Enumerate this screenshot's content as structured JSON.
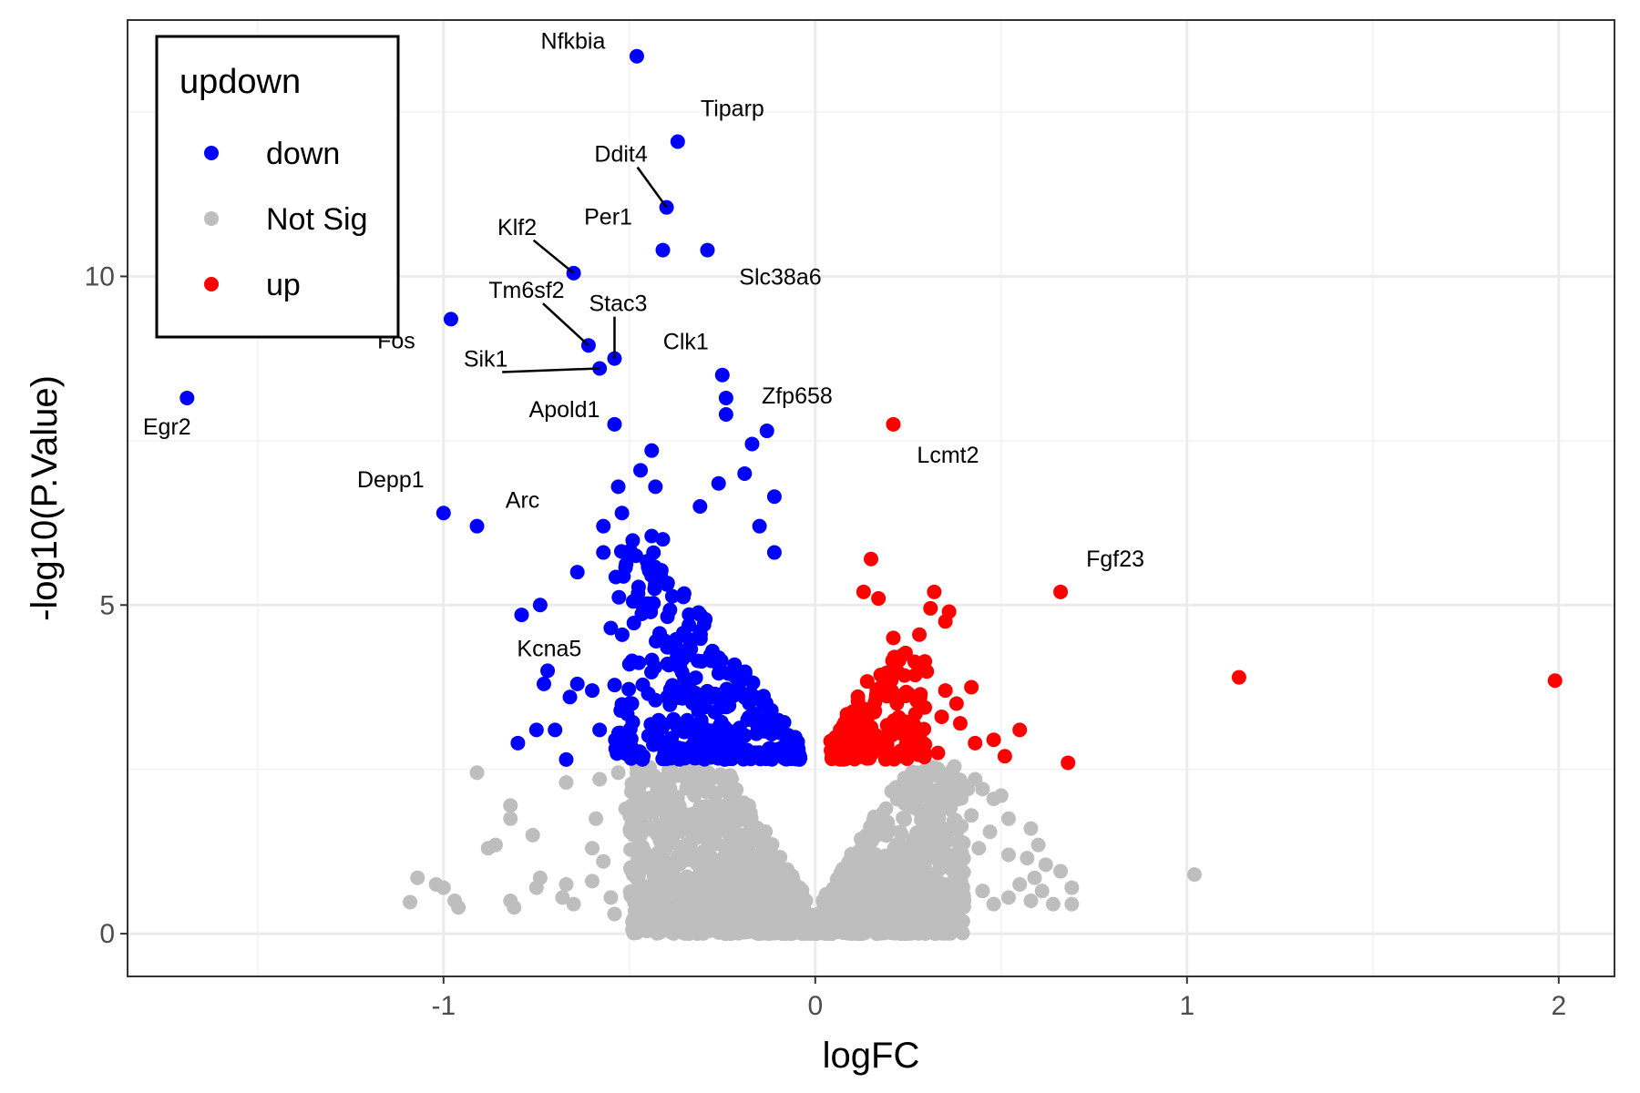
{
  "chart_data": {
    "type": "scatter",
    "xlabel": "logFC",
    "ylabel": "-log10(P.Value)",
    "xlim": [
      -1.85,
      2.15
    ],
    "ylim": [
      -0.65,
      13.9
    ],
    "x_ticks": [
      -1,
      0,
      1,
      2
    ],
    "x_tick_labels": [
      "-1",
      "0",
      "1",
      "2"
    ],
    "y_ticks": [
      0,
      5,
      10
    ],
    "y_tick_labels": [
      "0",
      "5",
      "10"
    ],
    "grid": true,
    "legend": {
      "title": "updown",
      "placement": "top-left",
      "entries": [
        {
          "label": "down",
          "color": "#0000ff"
        },
        {
          "label": "Not Sig",
          "color": "#bebebe"
        },
        {
          "label": "up",
          "color": "#ff0000"
        }
      ]
    },
    "colors": {
      "down": "#0000ff",
      "Not Sig": "#bebebe",
      "up": "#ff0000"
    },
    "labeled_points": [
      {
        "name": "Nfkbia",
        "x": -0.48,
        "y": 13.35,
        "group": "down"
      },
      {
        "name": "Tiparp",
        "x": -0.37,
        "y": 12.05,
        "group": "down"
      },
      {
        "name": "Ddit4",
        "x": -0.4,
        "y": 11.05,
        "group": "down"
      },
      {
        "name": "Per1",
        "x": -0.41,
        "y": 10.4,
        "group": "down"
      },
      {
        "name": "Slc38a6",
        "x": -0.29,
        "y": 10.4,
        "group": "down"
      },
      {
        "name": "Klf2",
        "x": -0.65,
        "y": 10.05,
        "group": "down"
      },
      {
        "name": "Fos",
        "x": -0.98,
        "y": 9.35,
        "group": "down"
      },
      {
        "name": "Tm6sf2",
        "x": -0.61,
        "y": 8.95,
        "group": "down"
      },
      {
        "name": "Stac3",
        "x": -0.54,
        "y": 8.75,
        "group": "down"
      },
      {
        "name": "Sik1",
        "x": -0.58,
        "y": 8.6,
        "group": "down"
      },
      {
        "name": "Clk1",
        "x": -0.25,
        "y": 8.5,
        "group": "down"
      },
      {
        "name": "Egr2",
        "x": -1.69,
        "y": 8.15,
        "group": "down"
      },
      {
        "name": "Zfp658",
        "x": -0.24,
        "y": 8.15,
        "group": "down"
      },
      {
        "name": "Apold1",
        "x": -0.54,
        "y": 7.75,
        "group": "down"
      },
      {
        "name": "Lcmt2",
        "x": 0.21,
        "y": 7.75,
        "group": "up"
      },
      {
        "name": "Depp1",
        "x": -1.0,
        "y": 6.4,
        "group": "down"
      },
      {
        "name": "Arc",
        "x": -0.91,
        "y": 6.2,
        "group": "down"
      },
      {
        "name": "Fgf23",
        "x": 0.66,
        "y": 5.2,
        "group": "up"
      },
      {
        "name": "Kcna5",
        "x": -0.74,
        "y": 5.0,
        "group": "down"
      }
    ],
    "other_points": [
      {
        "x": -0.24,
        "y": 7.9,
        "group": "down"
      },
      {
        "x": -0.13,
        "y": 7.65,
        "group": "down"
      },
      {
        "x": -0.17,
        "y": 7.45,
        "group": "down"
      },
      {
        "x": -0.44,
        "y": 7.35,
        "group": "down"
      },
      {
        "x": -0.47,
        "y": 7.05,
        "group": "down"
      },
      {
        "x": -0.19,
        "y": 7.0,
        "group": "down"
      },
      {
        "x": -0.53,
        "y": 6.8,
        "group": "down"
      },
      {
        "x": -0.43,
        "y": 6.8,
        "group": "down"
      },
      {
        "x": -0.26,
        "y": 6.85,
        "group": "down"
      },
      {
        "x": -0.11,
        "y": 6.65,
        "group": "down"
      },
      {
        "x": -0.31,
        "y": 6.5,
        "group": "down"
      },
      {
        "x": -0.52,
        "y": 6.4,
        "group": "down"
      },
      {
        "x": -0.57,
        "y": 6.2,
        "group": "down"
      },
      {
        "x": -0.15,
        "y": 6.2,
        "group": "down"
      },
      {
        "x": -0.44,
        "y": 6.05,
        "group": "down"
      },
      {
        "x": -0.41,
        "y": 6.0,
        "group": "down"
      },
      {
        "x": -0.57,
        "y": 5.8,
        "group": "down"
      },
      {
        "x": -0.11,
        "y": 5.8,
        "group": "down"
      },
      {
        "x": -0.64,
        "y": 5.5,
        "group": "down"
      },
      {
        "x": -0.43,
        "y": 5.3,
        "group": "down"
      },
      {
        "x": -0.79,
        "y": 4.85,
        "group": "down"
      },
      {
        "x": -0.55,
        "y": 4.65,
        "group": "down"
      },
      {
        "x": -0.5,
        "y": 4.1,
        "group": "down"
      },
      {
        "x": -0.72,
        "y": 4.0,
        "group": "down"
      },
      {
        "x": -0.73,
        "y": 3.8,
        "group": "down"
      },
      {
        "x": -0.64,
        "y": 3.8,
        "group": "down"
      },
      {
        "x": -0.66,
        "y": 3.6,
        "group": "down"
      },
      {
        "x": -0.6,
        "y": 3.7,
        "group": "down"
      },
      {
        "x": -0.5,
        "y": 3.5,
        "group": "down"
      },
      {
        "x": -0.75,
        "y": 3.1,
        "group": "down"
      },
      {
        "x": -0.7,
        "y": 3.1,
        "group": "down"
      },
      {
        "x": -0.58,
        "y": 3.1,
        "group": "down"
      },
      {
        "x": -0.8,
        "y": 2.9,
        "group": "down"
      },
      {
        "x": -0.53,
        "y": 2.9,
        "group": "down"
      },
      {
        "x": -0.67,
        "y": 2.65,
        "group": "down"
      },
      {
        "x": 0.15,
        "y": 5.7,
        "group": "up"
      },
      {
        "x": 0.32,
        "y": 5.2,
        "group": "up"
      },
      {
        "x": 0.13,
        "y": 5.2,
        "group": "up"
      },
      {
        "x": 0.17,
        "y": 5.1,
        "group": "up"
      },
      {
        "x": 0.31,
        "y": 4.95,
        "group": "up"
      },
      {
        "x": 0.36,
        "y": 4.9,
        "group": "up"
      },
      {
        "x": 0.35,
        "y": 4.75,
        "group": "up"
      },
      {
        "x": 0.28,
        "y": 4.55,
        "group": "up"
      },
      {
        "x": 0.21,
        "y": 4.5,
        "group": "up"
      },
      {
        "x": 1.14,
        "y": 3.9,
        "group": "up"
      },
      {
        "x": 1.99,
        "y": 3.85,
        "group": "up"
      },
      {
        "x": 0.42,
        "y": 3.75,
        "group": "up"
      },
      {
        "x": 0.35,
        "y": 3.7,
        "group": "up"
      },
      {
        "x": 0.38,
        "y": 3.5,
        "group": "up"
      },
      {
        "x": 0.34,
        "y": 3.3,
        "group": "up"
      },
      {
        "x": 0.39,
        "y": 3.2,
        "group": "up"
      },
      {
        "x": 0.55,
        "y": 3.1,
        "group": "up"
      },
      {
        "x": 0.48,
        "y": 2.95,
        "group": "up"
      },
      {
        "x": 0.43,
        "y": 2.9,
        "group": "up"
      },
      {
        "x": 0.51,
        "y": 2.7,
        "group": "up"
      },
      {
        "x": 0.33,
        "y": 2.75,
        "group": "up"
      },
      {
        "x": 0.68,
        "y": 2.6,
        "group": "up"
      },
      {
        "x": -0.91,
        "y": 2.45,
        "group": "Not Sig"
      },
      {
        "x": -0.67,
        "y": 2.3,
        "group": "Not Sig"
      },
      {
        "x": -0.82,
        "y": 1.95,
        "group": "Not Sig"
      },
      {
        "x": -0.82,
        "y": 1.75,
        "group": "Not Sig"
      },
      {
        "x": -0.76,
        "y": 1.5,
        "group": "Not Sig"
      },
      {
        "x": -0.86,
        "y": 1.35,
        "group": "Not Sig"
      },
      {
        "x": -0.88,
        "y": 1.3,
        "group": "Not Sig"
      },
      {
        "x": -1.07,
        "y": 0.85,
        "group": "Not Sig"
      },
      {
        "x": -1.02,
        "y": 0.75,
        "group": "Not Sig"
      },
      {
        "x": -1.0,
        "y": 0.7,
        "group": "Not Sig"
      },
      {
        "x": -1.09,
        "y": 0.48,
        "group": "Not Sig"
      },
      {
        "x": -0.97,
        "y": 0.5,
        "group": "Not Sig"
      },
      {
        "x": -0.96,
        "y": 0.4,
        "group": "Not Sig"
      },
      {
        "x": -0.82,
        "y": 0.5,
        "group": "Not Sig"
      },
      {
        "x": -0.81,
        "y": 0.4,
        "group": "Not Sig"
      },
      {
        "x": -0.74,
        "y": 0.85,
        "group": "Not Sig"
      },
      {
        "x": -0.75,
        "y": 0.7,
        "group": "Not Sig"
      },
      {
        "x": -0.67,
        "y": 0.75,
        "group": "Not Sig"
      },
      {
        "x": -0.68,
        "y": 0.55,
        "group": "Not Sig"
      },
      {
        "x": -0.65,
        "y": 0.45,
        "group": "Not Sig"
      },
      {
        "x": -0.6,
        "y": 0.8,
        "group": "Not Sig"
      },
      {
        "x": -0.6,
        "y": 1.3,
        "group": "Not Sig"
      },
      {
        "x": -0.59,
        "y": 1.75,
        "group": "Not Sig"
      },
      {
        "x": -0.58,
        "y": 2.35,
        "group": "Not Sig"
      },
      {
        "x": -0.53,
        "y": 2.45,
        "group": "Not Sig"
      },
      {
        "x": -0.54,
        "y": 0.3,
        "group": "Not Sig"
      },
      {
        "x": -0.57,
        "y": 1.1,
        "group": "Not Sig"
      },
      {
        "x": -0.55,
        "y": 0.55,
        "group": "Not Sig"
      },
      {
        "x": -0.51,
        "y": 1.9,
        "group": "Not Sig"
      },
      {
        "x": -0.47,
        "y": 1.6,
        "group": "Not Sig"
      },
      {
        "x": -0.49,
        "y": 0.9,
        "group": "Not Sig"
      },
      {
        "x": -0.43,
        "y": 2.1,
        "group": "Not Sig"
      },
      {
        "x": 0.37,
        "y": 2.5,
        "group": "Not Sig"
      },
      {
        "x": 0.41,
        "y": 2.2,
        "group": "Not Sig"
      },
      {
        "x": 0.43,
        "y": 2.35,
        "group": "Not Sig"
      },
      {
        "x": 0.45,
        "y": 2.2,
        "group": "Not Sig"
      },
      {
        "x": 0.48,
        "y": 2.05,
        "group": "Not Sig"
      },
      {
        "x": 0.5,
        "y": 2.1,
        "group": "Not Sig"
      },
      {
        "x": 0.36,
        "y": 1.9,
        "group": "Not Sig"
      },
      {
        "x": 0.42,
        "y": 1.8,
        "group": "Not Sig"
      },
      {
        "x": 0.52,
        "y": 1.75,
        "group": "Not Sig"
      },
      {
        "x": 0.47,
        "y": 1.55,
        "group": "Not Sig"
      },
      {
        "x": 0.58,
        "y": 1.6,
        "group": "Not Sig"
      },
      {
        "x": 0.6,
        "y": 1.35,
        "group": "Not Sig"
      },
      {
        "x": 0.44,
        "y": 1.3,
        "group": "Not Sig"
      },
      {
        "x": 0.52,
        "y": 1.2,
        "group": "Not Sig"
      },
      {
        "x": 0.57,
        "y": 1.15,
        "group": "Not Sig"
      },
      {
        "x": 0.62,
        "y": 1.05,
        "group": "Not Sig"
      },
      {
        "x": 0.66,
        "y": 0.95,
        "group": "Not Sig"
      },
      {
        "x": 0.59,
        "y": 0.85,
        "group": "Not Sig"
      },
      {
        "x": 0.55,
        "y": 0.75,
        "group": "Not Sig"
      },
      {
        "x": 0.61,
        "y": 0.65,
        "group": "Not Sig"
      },
      {
        "x": 0.52,
        "y": 0.55,
        "group": "Not Sig"
      },
      {
        "x": 0.58,
        "y": 0.5,
        "group": "Not Sig"
      },
      {
        "x": 0.64,
        "y": 0.45,
        "group": "Not Sig"
      },
      {
        "x": 0.69,
        "y": 0.45,
        "group": "Not Sig"
      },
      {
        "x": 0.69,
        "y": 0.7,
        "group": "Not Sig"
      },
      {
        "x": 1.02,
        "y": 0.9,
        "group": "Not Sig"
      },
      {
        "x": 0.45,
        "y": 0.65,
        "group": "Not Sig"
      },
      {
        "x": 0.48,
        "y": 0.45,
        "group": "Not Sig"
      },
      {
        "x": 0.4,
        "y": 0.5,
        "group": "Not Sig"
      },
      {
        "x": 0.36,
        "y": 0.3,
        "group": "Not Sig"
      }
    ],
    "dense_regions": [
      {
        "group": "down",
        "count": 340,
        "x_range": [
          -0.54,
          -0.04
        ],
        "y_range": [
          2.65,
          6.0
        ],
        "bias": 1.6
      },
      {
        "group": "up",
        "count": 170,
        "x_range": [
          0.04,
          0.3
        ],
        "y_range": [
          2.65,
          4.3
        ],
        "bias": 1.8
      },
      {
        "group": "Not Sig",
        "count": 1300,
        "x_range": [
          -0.5,
          0.4
        ],
        "y_range": [
          0.0,
          2.55
        ],
        "bias": 1.3
      },
      {
        "group": "Not Sig",
        "count": 700,
        "x_range": [
          -0.25,
          0.25
        ],
        "y_range": [
          0.0,
          1.2
        ],
        "bias": 1.0
      }
    ]
  }
}
